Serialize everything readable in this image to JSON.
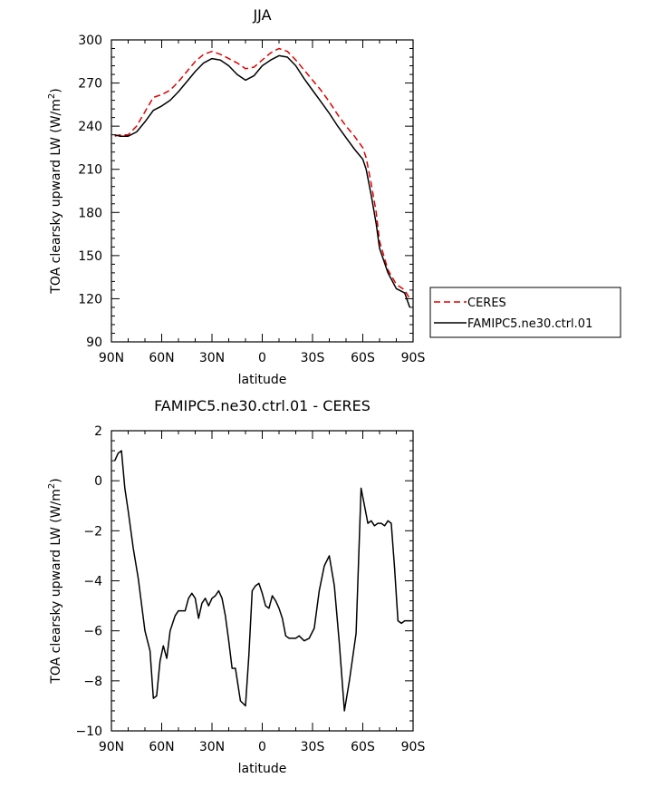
{
  "chart_data": [
    {
      "type": "line",
      "title": "JJA",
      "xlabel": "latitude",
      "ylabel": "TOA clearsky upward LW (W/m",
      "ylabel_sup": "2",
      "ylabel_close": ")",
      "xlim": [
        90,
        -90
      ],
      "ylim": [
        90,
        300
      ],
      "xticks": [
        90,
        60,
        30,
        0,
        -30,
        -60,
        -90
      ],
      "xtick_labels": [
        "90N",
        "60N",
        "30N",
        "0",
        "30S",
        "60S",
        "90S"
      ],
      "yticks": [
        90,
        120,
        150,
        180,
        210,
        240,
        270,
        300
      ],
      "ytick_labels": [
        "90",
        "120",
        "150",
        "180",
        "210",
        "240",
        "270",
        "300"
      ],
      "legend": "right",
      "series": [
        {
          "name": "CERES",
          "color": "#e00000",
          "dash": true,
          "x": [
            88,
            85,
            80,
            75,
            70,
            65,
            60,
            55,
            50,
            45,
            40,
            35,
            30,
            25,
            20,
            15,
            10,
            5,
            0,
            -5,
            -10,
            -15,
            -20,
            -25,
            -30,
            -35,
            -40,
            -45,
            -50,
            -55,
            -60,
            -62,
            -65,
            -68,
            -70,
            -75,
            -80,
            -85,
            -88
          ],
          "y": [
            233,
            234,
            234,
            240,
            250,
            260,
            262,
            265,
            271,
            278,
            285,
            290,
            292,
            290,
            287,
            284,
            280,
            281,
            286,
            291,
            294,
            292,
            286,
            279,
            272,
            265,
            257,
            248,
            240,
            233,
            225,
            218,
            200,
            180,
            160,
            140,
            130,
            126,
            120
          ]
        },
        {
          "name": "FAMIPC5.ne30.ctrl.01",
          "color": "#000000",
          "dash": false,
          "x": [
            88,
            85,
            80,
            75,
            70,
            65,
            60,
            55,
            50,
            45,
            40,
            35,
            30,
            25,
            20,
            15,
            10,
            5,
            0,
            -5,
            -10,
            -15,
            -20,
            -25,
            -30,
            -35,
            -40,
            -45,
            -50,
            -55,
            -60,
            -62,
            -65,
            -68,
            -70,
            -75,
            -80,
            -85,
            -88
          ],
          "y": [
            234,
            233,
            233,
            236,
            243,
            251,
            254,
            258,
            264,
            271,
            278,
            284,
            287,
            286,
            282,
            276,
            272,
            275,
            282,
            286,
            289,
            288,
            282,
            273,
            265,
            257,
            249,
            240,
            232,
            224,
            217,
            210,
            192,
            172,
            155,
            138,
            127,
            124,
            114
          ]
        }
      ]
    },
    {
      "type": "line",
      "title": "FAMIPC5.ne30.ctrl.01 - CERES",
      "xlabel": "latitude",
      "ylabel": "TOA clearsky upward LW (W/m",
      "ylabel_sup": "2",
      "ylabel_close": ")",
      "xlim": [
        90,
        -90
      ],
      "ylim": [
        -10,
        2
      ],
      "xticks": [
        90,
        60,
        30,
        0,
        -30,
        -60,
        -90
      ],
      "xtick_labels": [
        "90N",
        "60N",
        "30N",
        "0",
        "30S",
        "60S",
        "90S"
      ],
      "yticks": [
        -10,
        -8,
        -6,
        -4,
        -2,
        0,
        2
      ],
      "ytick_labels": [
        "−10",
        "−8",
        "−6",
        "−4",
        "−2",
        "0",
        "2"
      ],
      "series": [
        {
          "name": "",
          "color": "#000000",
          "dash": false,
          "x": [
            88,
            86,
            84,
            82,
            80,
            77,
            74,
            70,
            67,
            65,
            63,
            61,
            59,
            57,
            55,
            52,
            50,
            48,
            46,
            44,
            42,
            40,
            38,
            36,
            34,
            32,
            30,
            28,
            26,
            24,
            22,
            20,
            18,
            16,
            13,
            10,
            8,
            6,
            4,
            2,
            0,
            -2,
            -4,
            -6,
            -8,
            -10,
            -12,
            -14,
            -16,
            -18,
            -20,
            -22,
            -25,
            -28,
            -31,
            -34,
            -37,
            -40,
            -43,
            -46,
            -49,
            -52,
            -56,
            -59,
            -61,
            -63,
            -65,
            -67,
            -69,
            -71,
            -73,
            -75,
            -77,
            -79,
            -81,
            -83,
            -85,
            -87,
            -89
          ],
          "y": [
            0.8,
            1.1,
            1.2,
            -0.3,
            -1.2,
            -2.7,
            -3.9,
            -6.0,
            -6.8,
            -8.7,
            -8.6,
            -7.2,
            -6.6,
            -7.1,
            -6.0,
            -5.4,
            -5.2,
            -5.2,
            -5.2,
            -4.7,
            -4.5,
            -4.7,
            -5.5,
            -4.9,
            -4.7,
            -5.0,
            -4.7,
            -4.6,
            -4.4,
            -4.7,
            -5.4,
            -6.4,
            -7.5,
            -7.5,
            -8.8,
            -9.0,
            -7.0,
            -4.4,
            -4.2,
            -4.1,
            -4.5,
            -5.0,
            -5.1,
            -4.6,
            -4.8,
            -5.1,
            -5.5,
            -6.2,
            -6.3,
            -6.3,
            -6.3,
            -6.2,
            -6.4,
            -6.3,
            -5.9,
            -4.4,
            -3.4,
            -3.0,
            -4.2,
            -6.5,
            -9.2,
            -8.0,
            -6.1,
            -0.3,
            -1.0,
            -1.7,
            -1.6,
            -1.8,
            -1.7,
            -1.7,
            -1.8,
            -1.6,
            -1.7,
            -3.5,
            -5.6,
            -5.7,
            -5.6,
            -5.6,
            -5.6
          ]
        }
      ]
    }
  ]
}
